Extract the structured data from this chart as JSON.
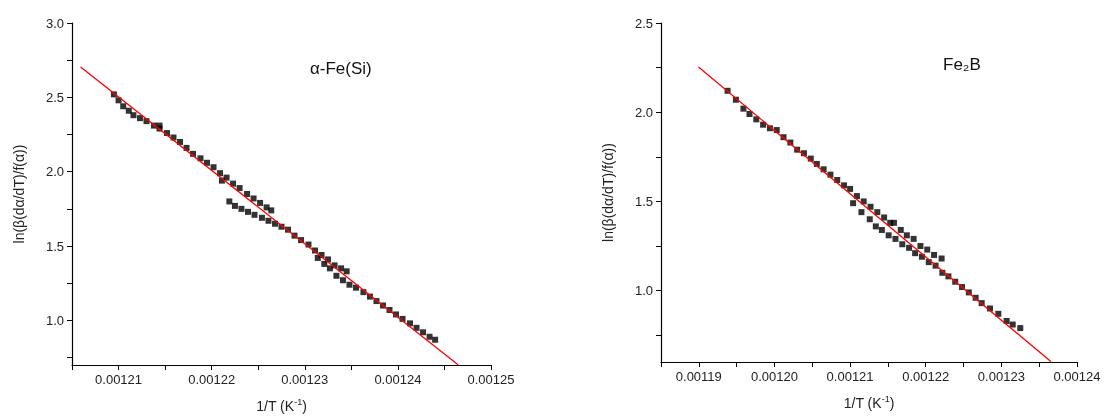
{
  "chart_data": [
    {
      "type": "scatter",
      "xlabel": "1/T (K$^{-1}$)",
      "ylabel": "ln(β(dα/dT)/f(α))",
      "annotations": [
        "α-Fe(Si)"
      ],
      "marker": "square",
      "xlim": [
        0.001205,
        0.00125
      ],
      "xticks": [
        {
          "value": 0.001205,
          "label": null
        },
        0.00121,
        {
          "value": 0.001215,
          "label": null
        },
        0.00122,
        {
          "value": 0.001225,
          "label": null
        },
        0.00123,
        {
          "value": 0.001235,
          "label": null
        },
        0.00124,
        {
          "value": 0.001245,
          "label": null
        },
        0.00125
      ],
      "ylim": [
        0.7,
        3.0
      ],
      "yticks": [
        {
          "value": 0.75,
          "label": null
        },
        {
          "value": 1,
          "label": "1.0"
        },
        {
          "value": 1.25,
          "label": null
        },
        {
          "value": 1.5,
          "label": "1.5"
        },
        {
          "value": 1.75,
          "label": null
        },
        {
          "value": 2,
          "label": "2.0"
        },
        {
          "value": 2.25,
          "label": null
        },
        {
          "value": 2.5,
          "label": "2.5"
        },
        {
          "value": 2.75,
          "label": null
        },
        {
          "value": 3,
          "label": "3.0"
        }
      ],
      "series": [
        {
          "type": "scatter",
          "color": "#000000",
          "x": [
            0.0012095,
            0.00121,
            0.0012105,
            0.0012111,
            0.0012116,
            0.0012123,
            0.001213,
            0.0012138,
            0.0012144,
            0.0012144,
            0.0012152,
            0.0012159,
            0.0012166,
            0.0012173,
            0.001218,
            0.0012188,
            0.0012195,
            0.0012202,
            0.0012209,
            0.0012211,
            0.0012216,
            0.0012223,
            0.001223,
            0.0012238,
            0.0012245,
            0.0012252,
            0.0012259,
            0.0012264,
            0.0012219,
            0.0012225,
            0.0012232,
            0.0012239,
            0.0012246,
            0.0012254,
            0.0012261,
            0.0012268,
            0.0012275,
            0.0012282,
            0.0012289,
            0.0012296,
            0.0012304,
            0.0012311,
            0.0012318,
            0.0012325,
            0.0012332,
            0.0012339,
            0.0012345,
            0.0012314,
            0.0012321,
            0.0012327,
            0.0012334,
            0.0012341,
            0.0012348,
            0.0012355,
            0.0012363,
            0.001237,
            0.0012377,
            0.0012384,
            0.0012391,
            0.0012398,
            0.0012405,
            0.0012413,
            0.001242,
            0.0012427,
            0.0012434,
            0.001244
          ],
          "values": [
            2.52,
            2.48,
            2.44,
            2.41,
            2.38,
            2.36,
            2.34,
            2.31,
            2.31,
            2.29,
            2.26,
            2.23,
            2.2,
            2.16,
            2.12,
            2.09,
            2.06,
            2.03,
            1.99,
            1.94,
            1.96,
            1.92,
            1.89,
            1.85,
            1.82,
            1.79,
            1.76,
            1.74,
            1.8,
            1.77,
            1.75,
            1.73,
            1.71,
            1.69,
            1.67,
            1.65,
            1.63,
            1.61,
            1.57,
            1.54,
            1.51,
            1.47,
            1.44,
            1.41,
            1.37,
            1.35,
            1.33,
            1.42,
            1.38,
            1.35,
            1.3,
            1.27,
            1.24,
            1.22,
            1.19,
            1.16,
            1.13,
            1.1,
            1.07,
            1.04,
            1.01,
            0.98,
            0.95,
            0.92,
            0.89,
            0.87
          ]
        },
        {
          "type": "line",
          "color": "#ff0000",
          "marker": "none",
          "x": [
            0.00120596,
            0.00124643
          ],
          "values": [
            2.702,
            0.704
          ]
        }
      ]
    },
    {
      "type": "scatter",
      "xlabel": "1/T (K$^{-1}$)",
      "ylabel": "ln(β(dα/dT)/f(α))",
      "annotations": [
        "Fe₂B"
      ],
      "marker": "square",
      "xlim": [
        0.001185,
        0.00124
      ],
      "xticks": [
        {
          "value": 0.001185,
          "label": null
        },
        0.00119,
        {
          "value": 0.001195,
          "label": null
        },
        {
          "value": 0.0012,
          "label": "0.00120"
        },
        {
          "value": 0.001205,
          "label": null
        },
        0.00121,
        {
          "value": 0.001215,
          "label": null
        },
        0.00122,
        {
          "value": 0.001225,
          "label": null
        },
        0.00123,
        {
          "value": 0.001235,
          "label": null
        },
        0.00124
      ],
      "ylim": [
        0.6,
        2.5
      ],
      "yticks": [
        {
          "value": 0.75,
          "label": null
        },
        {
          "value": 1,
          "label": "1.0"
        },
        {
          "value": 1.25,
          "label": null
        },
        {
          "value": 1.5,
          "label": "1.5"
        },
        {
          "value": 1.75,
          "label": null
        },
        {
          "value": 2,
          "label": "2.0"
        },
        {
          "value": 2.25,
          "label": null
        },
        {
          "value": 2.5,
          "label": "2.5"
        }
      ],
      "series": [
        {
          "type": "scatter",
          "color": "#000000",
          "x": [
            0.0011938,
            0.0011949,
            0.0011959,
            0.0011967,
            0.0011976,
            0.0011985,
            0.0011994,
            0.0012003,
            0.0012012,
            0.0012021,
            0.001203,
            0.0012039,
            0.0012048,
            0.0012056,
            0.0012065,
            0.0012074,
            0.0012083,
            0.0012092,
            0.00121,
            0.0012109,
            0.0012118,
            0.0012127,
            0.0012136,
            0.0012145,
            0.0012153,
            0.0012158,
            0.0012167,
            0.0012175,
            0.0012184,
            0.0012193,
            0.0012202,
            0.0012211,
            0.0012221,
            0.0012104,
            0.0012115,
            0.0012126,
            0.0012134,
            0.0012142,
            0.0012151,
            0.001216,
            0.0012169,
            0.0012178,
            0.0012186,
            0.0012195,
            0.0012204,
            0.0012213,
            0.0012222,
            0.001223,
            0.0012239,
            0.0012248,
            0.0012257,
            0.0012266,
            0.0012274,
            0.0012285,
            0.0012296,
            0.0012307,
            0.0012315,
            0.0012325
          ],
          "values": [
            2.12,
            2.07,
            2.02,
            1.99,
            1.96,
            1.93,
            1.91,
            1.9,
            1.86,
            1.83,
            1.79,
            1.77,
            1.74,
            1.71,
            1.68,
            1.65,
            1.62,
            1.59,
            1.57,
            1.53,
            1.5,
            1.47,
            1.44,
            1.41,
            1.38,
            1.38,
            1.34,
            1.31,
            1.29,
            1.25,
            1.23,
            1.2,
            1.18,
            1.49,
            1.44,
            1.4,
            1.36,
            1.34,
            1.31,
            1.29,
            1.26,
            1.24,
            1.21,
            1.19,
            1.16,
            1.14,
            1.1,
            1.08,
            1.05,
            1.02,
            0.99,
            0.96,
            0.93,
            0.9,
            0.87,
            0.83,
            0.81,
            0.79
          ]
        },
        {
          "type": "line",
          "color": "#ff0000",
          "marker": "none",
          "x": [
            0.00119,
            0.0012365
          ],
          "values": [
            2.252,
            0.604
          ]
        }
      ]
    }
  ]
}
